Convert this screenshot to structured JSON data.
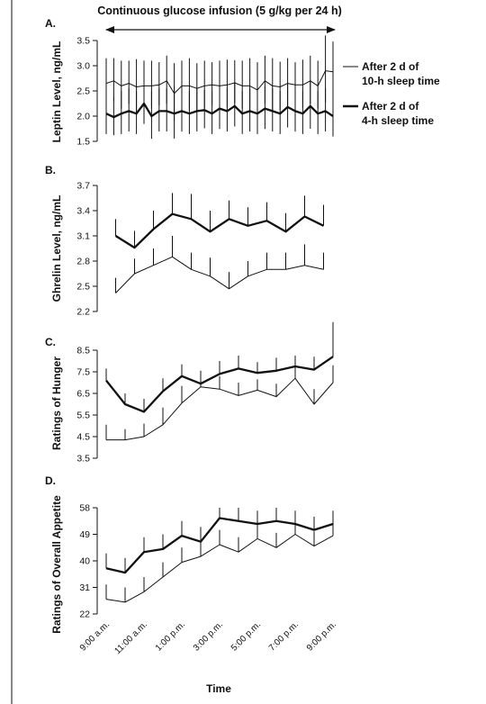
{
  "header": {
    "text": "Continuous glucose infusion (5 g/kg per 24 h)"
  },
  "x_axis": {
    "title": "Time",
    "tick_labels": [
      "9:00 a.m.",
      "11:00 a.m.",
      "1:00 p.m.",
      "3:00 p.m.",
      "5:00 p.m.",
      "7:00 p.m.",
      "9:00 p.m."
    ]
  },
  "legend": {
    "items": [
      {
        "line1": "After 2 d of",
        "line2": "10-h sleep time",
        "style": "thin"
      },
      {
        "line1": "After 2 d of",
        "line2": "4-h sleep time",
        "style": "thick"
      }
    ]
  },
  "chart_data": [
    {
      "panel": "A.",
      "type": "line",
      "ylabel": "Leptin Level, ng/mL",
      "ylim": [
        1.5,
        3.5
      ],
      "yticks": [
        "1.5",
        "2.0",
        "2.5",
        "3.0",
        "3.5"
      ],
      "x_range_hours": [
        9,
        21
      ],
      "series": [
        {
          "style": "thin",
          "x": [
            9.0,
            9.4,
            9.8,
            10.2,
            10.6,
            11.0,
            11.4,
            11.8,
            12.2,
            12.6,
            13.0,
            13.4,
            13.8,
            14.2,
            14.6,
            15.0,
            15.4,
            15.8,
            16.2,
            16.6,
            17.0,
            17.4,
            17.8,
            18.2,
            18.6,
            19.0,
            19.4,
            19.8,
            20.2,
            20.6,
            21.0
          ],
          "y": [
            2.65,
            2.7,
            2.6,
            2.65,
            2.58,
            2.6,
            2.6,
            2.62,
            2.7,
            2.45,
            2.6,
            2.6,
            2.55,
            2.6,
            2.62,
            2.6,
            2.62,
            2.66,
            2.6,
            2.6,
            2.52,
            2.7,
            2.6,
            2.58,
            2.65,
            2.62,
            2.62,
            2.7,
            2.6,
            2.9,
            2.88
          ],
          "error": [
            0.5,
            0.45,
            0.5,
            0.45,
            0.55,
            0.5,
            0.5,
            0.45,
            0.5,
            0.6,
            0.5,
            0.55,
            0.5,
            0.5,
            0.45,
            0.5,
            0.5,
            0.45,
            0.5,
            0.55,
            0.55,
            0.5,
            0.55,
            0.5,
            0.5,
            0.45,
            0.5,
            0.5,
            0.5,
            0.7,
            0.6
          ]
        },
        {
          "style": "thick",
          "x": [
            9.0,
            9.4,
            9.8,
            10.2,
            10.6,
            11.0,
            11.4,
            11.8,
            12.2,
            12.6,
            13.0,
            13.4,
            13.8,
            14.2,
            14.6,
            15.0,
            15.4,
            15.8,
            16.2,
            16.6,
            17.0,
            17.4,
            17.8,
            18.2,
            18.6,
            19.0,
            19.4,
            19.8,
            20.2,
            20.6,
            21.0
          ],
          "y": [
            2.05,
            1.98,
            2.05,
            2.1,
            2.05,
            2.25,
            2.0,
            2.1,
            2.1,
            2.05,
            2.1,
            2.05,
            2.1,
            2.12,
            2.05,
            2.15,
            2.1,
            2.2,
            2.05,
            2.1,
            2.05,
            2.15,
            2.1,
            2.05,
            2.18,
            2.1,
            2.05,
            2.2,
            2.05,
            2.1,
            2.0
          ],
          "error": [
            0.45,
            0.4,
            0.45,
            0.45,
            0.45,
            0.45,
            0.5,
            0.45,
            0.45,
            0.55,
            0.45,
            0.45,
            0.45,
            0.4,
            0.45,
            0.45,
            0.45,
            0.45,
            0.45,
            0.45,
            0.45,
            0.45,
            0.45,
            0.45,
            0.45,
            0.45,
            0.45,
            0.5,
            0.45,
            0.45,
            0.45
          ]
        }
      ]
    },
    {
      "panel": "B.",
      "type": "line",
      "ylabel": "Ghrelin Level, ng/mL",
      "ylim": [
        2.2,
        3.7
      ],
      "yticks": [
        "2.2",
        "2.5",
        "2.8",
        "3.1",
        "3.4",
        "3.7"
      ],
      "x_range_hours": [
        9,
        21
      ],
      "series": [
        {
          "style": "thin",
          "x": [
            9.5,
            10.5,
            11.5,
            12.5,
            13.5,
            14.5,
            15.5,
            16.5,
            17.5,
            18.5,
            19.5,
            20.5
          ],
          "y": [
            2.42,
            2.65,
            2.75,
            2.85,
            2.7,
            2.62,
            2.47,
            2.62,
            2.7,
            2.7,
            2.75,
            2.7
          ],
          "error": [
            0.18,
            0.18,
            0.2,
            0.25,
            0.2,
            0.22,
            0.2,
            0.18,
            0.2,
            0.2,
            0.25,
            0.2
          ]
        },
        {
          "style": "thick",
          "x": [
            9.5,
            10.5,
            11.5,
            12.5,
            13.5,
            14.5,
            15.5,
            16.5,
            17.5,
            18.5,
            19.5,
            20.5
          ],
          "y": [
            3.1,
            2.96,
            3.18,
            3.36,
            3.3,
            3.15,
            3.3,
            3.22,
            3.28,
            3.15,
            3.33,
            3.22
          ],
          "error": [
            0.2,
            0.2,
            0.22,
            0.25,
            0.3,
            0.25,
            0.22,
            0.22,
            0.22,
            0.22,
            0.25,
            0.25
          ]
        }
      ]
    },
    {
      "panel": "C.",
      "type": "line",
      "ylabel": "Ratings of Hunger",
      "ylim": [
        3.5,
        8.5
      ],
      "yticks": [
        "3.5",
        "4.5",
        "5.5",
        "6.5",
        "7.5",
        "8.5"
      ],
      "x_range_hours": [
        9,
        21
      ],
      "series": [
        {
          "style": "thin",
          "x": [
            9.0,
            10.0,
            11.0,
            12.0,
            13.0,
            14.0,
            15.0,
            16.0,
            17.0,
            18.0,
            19.0,
            20.0,
            21.0
          ],
          "y": [
            4.35,
            4.35,
            4.5,
            5.05,
            6.05,
            6.8,
            6.7,
            6.4,
            6.65,
            6.35,
            7.2,
            6.0,
            7.0
          ],
          "error": [
            0.7,
            0.5,
            0.6,
            0.8,
            0.8,
            0.7,
            0.6,
            0.6,
            0.5,
            0.6,
            0.6,
            0.7,
            0.8
          ]
        },
        {
          "style": "thick",
          "x": [
            9.0,
            10.0,
            11.0,
            12.0,
            13.0,
            14.0,
            15.0,
            16.0,
            17.0,
            18.0,
            19.0,
            20.0,
            21.0
          ],
          "y": [
            7.1,
            6.0,
            5.65,
            6.6,
            7.3,
            6.95,
            7.4,
            7.65,
            7.45,
            7.55,
            7.75,
            7.6,
            8.2
          ],
          "error": [
            0.55,
            0.5,
            0.6,
            0.6,
            0.55,
            0.6,
            0.6,
            0.6,
            0.5,
            0.6,
            0.5,
            0.6,
            1.6
          ]
        }
      ]
    },
    {
      "panel": "D.",
      "type": "line",
      "ylabel": "Ratings of Overall Appetite",
      "ylim": [
        22,
        58
      ],
      "yticks": [
        "22",
        "31",
        "40",
        "49",
        "58"
      ],
      "x_range_hours": [
        9,
        21
      ],
      "series": [
        {
          "style": "thin",
          "x": [
            9.0,
            10.0,
            11.0,
            12.0,
            13.0,
            14.0,
            15.0,
            16.0,
            17.0,
            18.0,
            19.0,
            20.0,
            21.0
          ],
          "y": [
            27,
            26,
            29.5,
            34.5,
            39.5,
            41.5,
            45.5,
            43,
            47.5,
            44.5,
            49,
            45,
            48.5
          ],
          "error": [
            5,
            5,
            5,
            5,
            5,
            5,
            5,
            5,
            5,
            5,
            5,
            5,
            5
          ]
        },
        {
          "style": "thick",
          "x": [
            9.0,
            10.0,
            11.0,
            12.0,
            13.0,
            14.0,
            15.0,
            16.0,
            17.0,
            18.0,
            19.0,
            20.0,
            21.0
          ],
          "y": [
            37.5,
            36,
            43,
            44,
            48.5,
            46.5,
            54.5,
            53.5,
            52.5,
            53.5,
            52.5,
            50.5,
            52.5
          ],
          "error": [
            5,
            5,
            5,
            5,
            5,
            5,
            3.5,
            4.5,
            4.5,
            4.5,
            4.5,
            4.5,
            4.5
          ]
        }
      ]
    }
  ]
}
